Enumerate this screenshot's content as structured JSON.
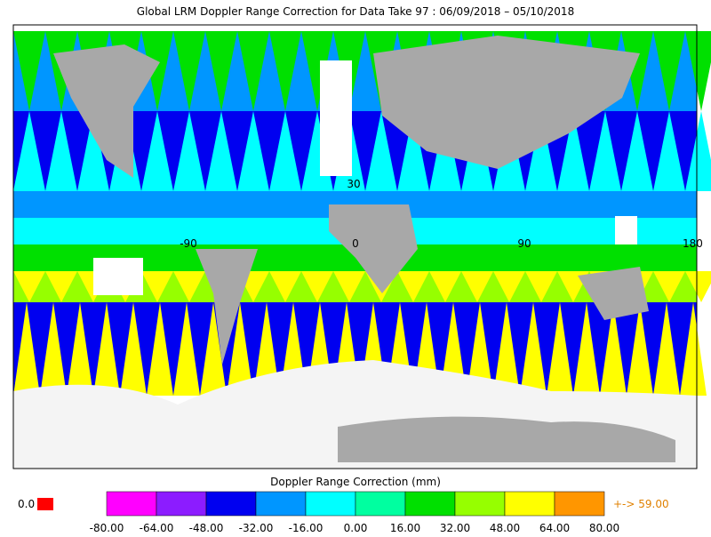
{
  "title": "Global LRM Doppler Range Correction for Data Take 97 : 06/09/2018 – 05/10/2018",
  "map": {
    "lat_labels": [
      "30"
    ],
    "lon_labels": [
      "-90",
      "0",
      "90",
      "180"
    ]
  },
  "legend": {
    "missing_label": "0.0",
    "overflow_label": "+-> 59.00"
  },
  "colorbar": {
    "label": "Doppler Range Correction (mm)",
    "ticks": [
      "-80.00",
      "-64.00",
      "-48.00",
      "-32.00",
      "-16.00",
      "0.00",
      "16.00",
      "32.00",
      "48.00",
      "64.00",
      "80.00"
    ],
    "colors": [
      "#ff00ff",
      "#8c1cff",
      "#0000f0",
      "#0096ff",
      "#00ffff",
      "#00ffa0",
      "#00e000",
      "#96ff00",
      "#ffff00",
      "#ff9600"
    ]
  }
}
